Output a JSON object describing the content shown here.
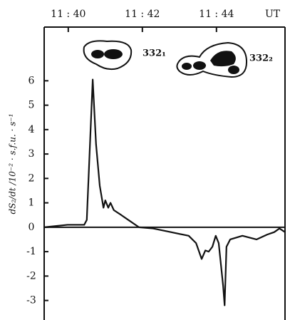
{
  "chart_data": {
    "type": "line",
    "x_label": "UT",
    "y_label": "dS₂/dt /10⁻² · s.f.u. · s⁻¹",
    "annotations": [
      "332₁",
      "332₂"
    ],
    "xlim": [
      699.35,
      705.85
    ],
    "xticks": [
      {
        "value": 700,
        "label": "11 : 40"
      },
      {
        "value": 702,
        "label": "11 : 42"
      },
      {
        "value": 704,
        "label": "11 : 44"
      }
    ],
    "ylim": [
      -3.8,
      8.2
    ],
    "yticks": [
      -3,
      -2,
      -1,
      0,
      1,
      2,
      3,
      4,
      5,
      6
    ],
    "series": [
      {
        "color": "#111111",
        "x": [
          699.35,
          699.98,
          700.43,
          700.5,
          700.66,
          700.75,
          700.85,
          700.95,
          701.0,
          701.08,
          701.14,
          701.23,
          701.43,
          701.62,
          701.91,
          702.29,
          702.77,
          703.25,
          703.45,
          703.6,
          703.7,
          703.79,
          703.89,
          703.98,
          704.06,
          704.18,
          704.22,
          704.27,
          704.37,
          704.7,
          705.08,
          705.37,
          705.56,
          705.7,
          705.85
        ],
        "values": [
          0,
          0.1,
          0.1,
          0.3,
          6.05,
          3.4,
          1.7,
          0.8,
          1.1,
          0.8,
          1.0,
          0.7,
          0.5,
          0.3,
          0,
          -0.05,
          -0.2,
          -0.35,
          -0.65,
          -1.3,
          -0.95,
          -1.0,
          -0.8,
          -0.35,
          -0.65,
          -2.4,
          -3.2,
          -0.8,
          -0.5,
          -0.35,
          -0.5,
          -0.3,
          -0.2,
          -0.05,
          -0.2
        ]
      }
    ]
  }
}
